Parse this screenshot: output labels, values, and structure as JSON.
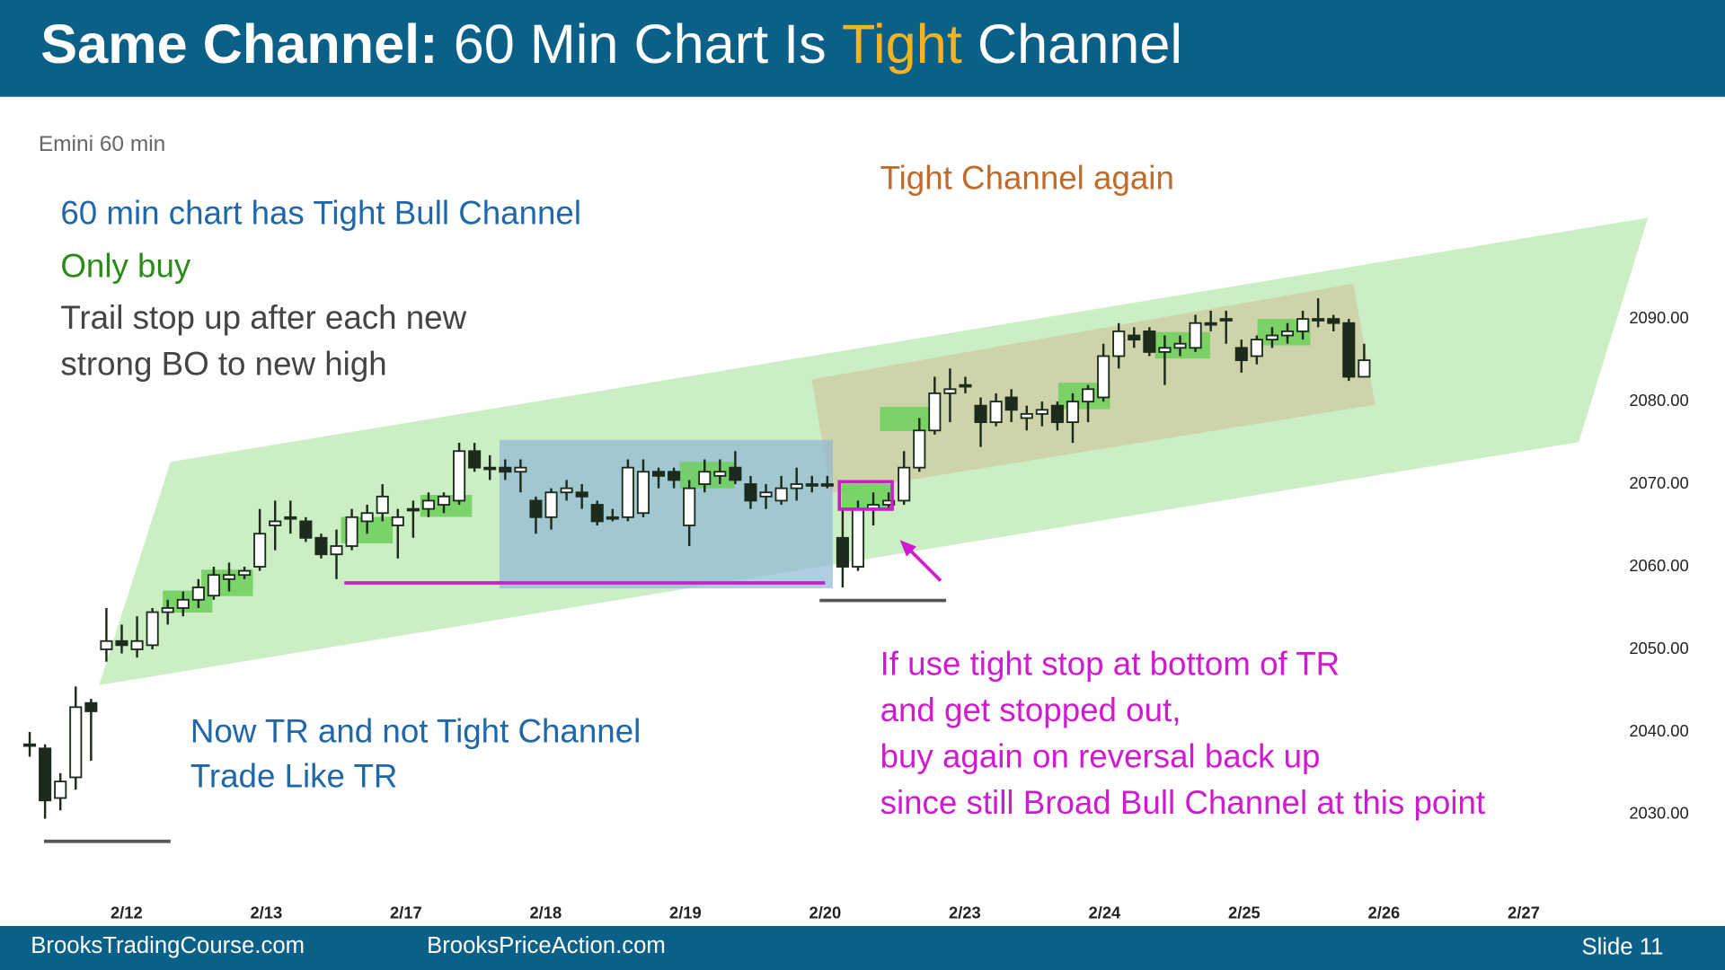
{
  "header": {
    "title_bold": "Same Channel:",
    "title_1": "60 Min Chart Is",
    "title_highlight": "Tight",
    "title_2": "Channel"
  },
  "footer": {
    "left": "BrooksTradingCourse.com",
    "center": "BrooksPriceAction.com",
    "right": "Slide  11"
  },
  "chart_data": {
    "type": "candlestick",
    "subtitle": "Emini 60 min",
    "annotations": [
      "60 min chart has Tight Bull Channel",
      "Only buy",
      "Trail stop up after each new",
      "strong BO to new high",
      "Tight Channel again",
      "Now TR and not Tight Channel",
      "Trade Like TR",
      "If use tight stop at bottom of TR",
      "and get stopped out,",
      "buy again on reversal back up",
      "since still Broad Bull Channel at this point"
    ],
    "categories": [
      "2/12",
      "2/13",
      "2/17",
      "2/18",
      "2/19",
      "2/20",
      "2/23",
      "2/24",
      "2/25",
      "2/26",
      "2/27"
    ],
    "up_color": "#ffffff",
    "down_color": "#1c2b1c",
    "ylim": [
      2016.5,
      2116.9
    ],
    "yticks": [
      {
        "value": 2090,
        "label": "2090.00"
      },
      {
        "value": 2080,
        "label": "2080.00"
      },
      {
        "value": 2070,
        "label": "2070.00"
      },
      {
        "value": 2060,
        "label": "2060.00"
      },
      {
        "value": 2050,
        "label": "2050.00"
      },
      {
        "value": 2040,
        "label": "2040.00"
      },
      {
        "value": 2030,
        "label": "2030.00"
      }
    ],
    "open": [
      2038.5,
      2038,
      2032,
      2034.5,
      2043.5,
      2050,
      2051,
      2050,
      2050.5,
      2054.5,
      2055,
      2056,
      2056.5,
      2058.5,
      2059,
      2060,
      2065,
      2066,
      2065.5,
      2063.5,
      2061.5,
      2062.5,
      2065.5,
      2066.5,
      2065,
      2067,
      2067,
      2067.5,
      2068,
      2074,
      2072,
      2072,
      2071.5,
      2068,
      2066,
      2069,
      2069,
      2067.5,
      2066,
      2066,
      2066.5,
      2071.5,
      2071.5,
      2065,
      2070,
      2071,
      2072,
      2070,
      2068.5,
      2068,
      2069.5,
      2070,
      2070,
      2063.5,
      2060,
      2067,
      2067.5,
      2068,
      2072,
      2076.5,
      2081,
      2082,
      2079.5,
      2077.5,
      2080.5,
      2078,
      2078.5,
      2079.5,
      2077.5,
      2080,
      2080.5,
      2085.5,
      2088,
      2088.5,
      2086,
      2086.5,
      2086.5,
      2089.5,
      2090,
      2086.5,
      2085.5,
      2087.5,
      2088,
      2088.5,
      2090,
      2090,
      2089.5,
      2083
    ],
    "high": [
      2040,
      2038.5,
      2035,
      2045.5,
      2044,
      2055,
      2053,
      2054,
      2055,
      2056,
      2057,
      2058.5,
      2060,
      2060.5,
      2060,
      2067,
      2068,
      2068,
      2066,
      2064,
      2064.5,
      2067,
      2067.5,
      2070,
      2067,
      2068,
      2069,
      2069,
      2075,
      2075,
      2073.5,
      2073,
      2073,
      2068.5,
      2069.5,
      2070.5,
      2070,
      2068,
      2067,
      2073,
      2073,
      2072,
      2072,
      2070.5,
      2073,
      2073,
      2074,
      2071,
      2070,
      2071,
      2072,
      2071,
      2071,
      2067,
      2068,
      2069,
      2069,
      2074,
      2078,
      2083,
      2084,
      2083,
      2080.5,
      2081,
      2081.5,
      2079.5,
      2080,
      2080,
      2081,
      2082,
      2087,
      2089.5,
      2089,
      2089,
      2088,
      2088,
      2090.5,
      2091,
      2091,
      2087.5,
      2088,
      2089,
      2089.5,
      2091,
      2092.5,
      2090.5,
      2090,
      2087
    ],
    "low": [
      2037,
      2029.5,
      2030.5,
      2033,
      2036.5,
      2048.5,
      2049.5,
      2049,
      2050,
      2053,
      2054,
      2055,
      2056,
      2057,
      2058.5,
      2059.5,
      2062,
      2064,
      2063,
      2061,
      2058.5,
      2062,
      2064,
      2065.5,
      2061,
      2063.5,
      2066,
      2066.5,
      2067.5,
      2071.5,
      2070.5,
      2070.5,
      2069,
      2064,
      2064.5,
      2068,
      2067,
      2065,
      2065.5,
      2065.5,
      2066,
      2069.5,
      2069.5,
      2062.5,
      2069,
      2070,
      2070,
      2067,
      2067,
      2067.5,
      2068,
      2069,
      2069.5,
      2057.5,
      2059.5,
      2065,
      2067,
      2067.5,
      2071.5,
      2076,
      2077.5,
      2081,
      2074.5,
      2077,
      2077.5,
      2076.5,
      2077,
      2076.5,
      2075,
      2077.5,
      2080,
      2084,
      2086.5,
      2085.5,
      2082,
      2085.5,
      2086,
      2088.5,
      2087,
      2083.5,
      2084.5,
      2086.5,
      2087,
      2087.5,
      2089,
      2088.5,
      2082.5,
      2083
    ],
    "close": [
      2038.5,
      2031.7,
      2034,
      2043,
      2042.5,
      2051,
      2050.5,
      2051,
      2054.5,
      2055,
      2056,
      2057.5,
      2059,
      2059,
      2059.5,
      2064,
      2065.5,
      2066,
      2063.5,
      2061.5,
      2062.5,
      2066,
      2066.5,
      2068.5,
      2066,
      2067,
      2068,
      2068.5,
      2074,
      2072,
      2072,
      2071.5,
      2072,
      2066,
      2069,
      2069.5,
      2068.5,
      2065.5,
      2066,
      2072,
      2071.5,
      2071,
      2070.5,
      2069.5,
      2071.5,
      2071.5,
      2070.5,
      2068,
      2069,
      2069.5,
      2070,
      2070,
      2070,
      2060,
      2067,
      2067.5,
      2068,
      2072,
      2076.5,
      2081,
      2081.5,
      2082,
      2077.5,
      2080,
      2079,
      2078.5,
      2079,
      2077.5,
      2080,
      2081.5,
      2085.5,
      2088.5,
      2087.5,
      2086,
      2086.5,
      2087,
      2089.5,
      2089.5,
      2090,
      2085,
      2087.5,
      2088,
      2088.5,
      2090,
      2090,
      2089.5,
      2083,
      2085
    ]
  }
}
